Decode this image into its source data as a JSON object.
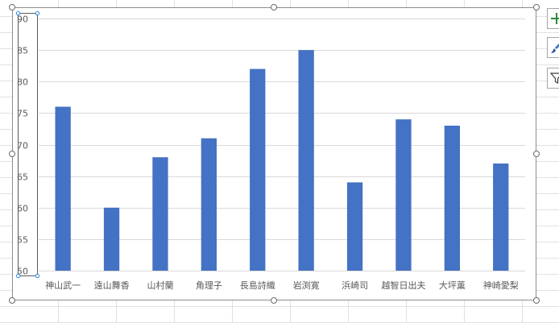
{
  "colors": {
    "bar": "#4472C4",
    "gridline": "#d9d9d9",
    "axis_text": "#595959",
    "sheet_grid": "#e1e1e1",
    "plot_area_border": "#5a5a5a",
    "selection_handle": "#2e86de"
  },
  "chart_data": {
    "type": "bar",
    "categories": [
      "神山武一",
      "遠山舞香",
      "山村蘭",
      "角理子",
      "長島詩織",
      "岩渕寛",
      "浜崎司",
      "越智日出夫",
      "大坪薫",
      "神崎愛梨"
    ],
    "series": [
      {
        "values": [
          76,
          60,
          68,
          71,
          82,
          85,
          64,
          74,
          73,
          67
        ]
      }
    ],
    "title": "",
    "xlabel": "",
    "ylabel": "",
    "ylim": [
      50,
      90
    ],
    "yticks": [
      "50",
      "55",
      "60",
      "65",
      "70",
      "75",
      "80",
      "85",
      "90"
    ],
    "grid": true,
    "legend": "none"
  },
  "side_buttons": [
    {
      "name": "chart-elements-button",
      "icon": "plus-icon"
    },
    {
      "name": "chart-styles-button",
      "icon": "brush-icon"
    },
    {
      "name": "chart-filters-button",
      "icon": "funnel-icon"
    }
  ]
}
